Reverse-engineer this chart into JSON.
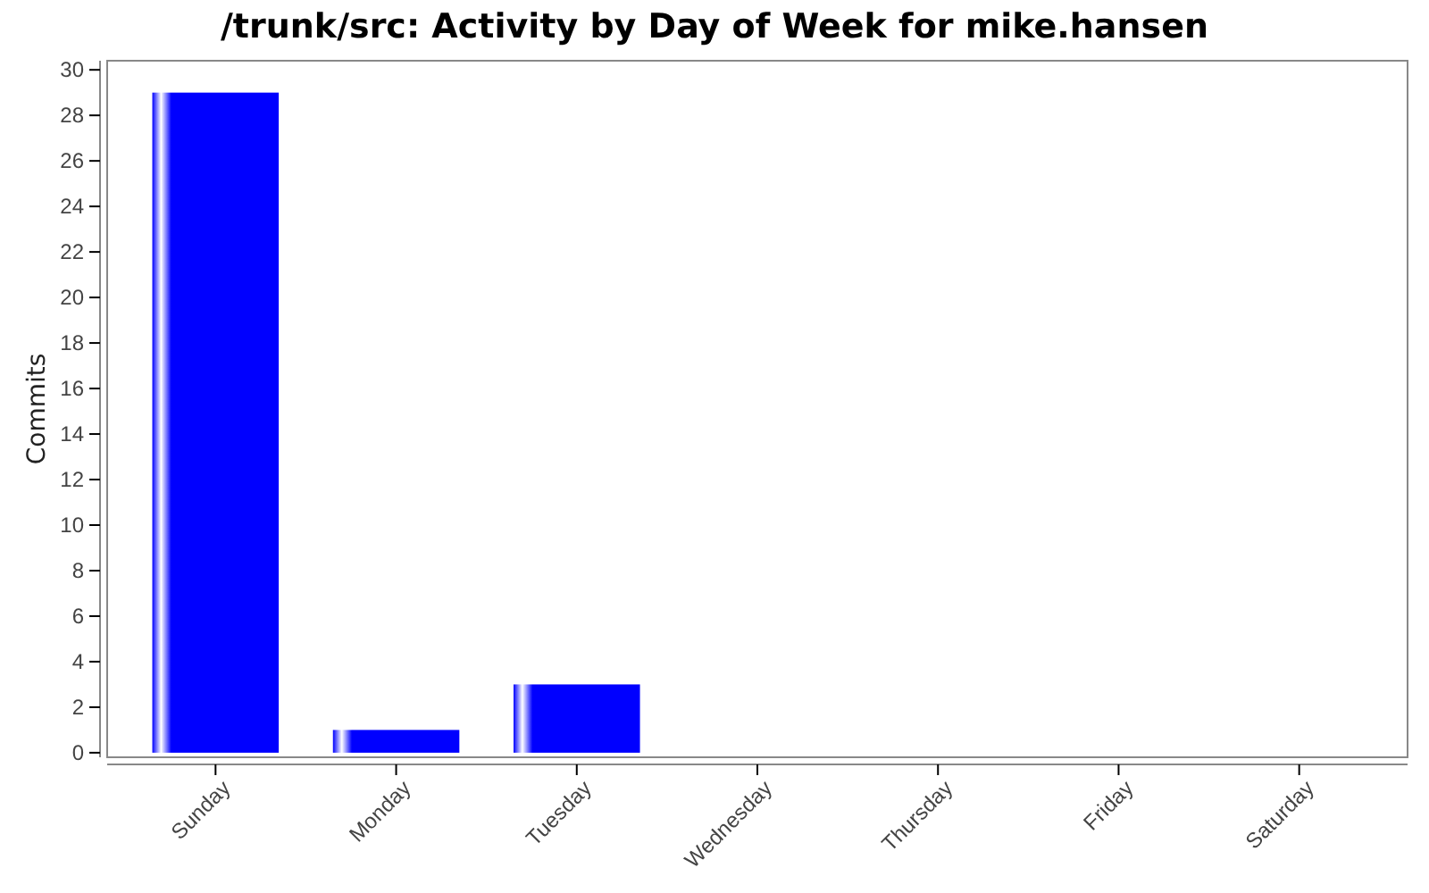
{
  "chart_data": {
    "type": "bar",
    "title": "/trunk/src: Activity by Day of Week for mike.hansen",
    "ylabel": "Commits",
    "categories": [
      "Sunday",
      "Monday",
      "Tuesday",
      "Wednesday",
      "Thursday",
      "Friday",
      "Saturday"
    ],
    "values": [
      29,
      1,
      3,
      0,
      0,
      0,
      0
    ],
    "color": "#0000ff",
    "ylim": [
      -0.2,
      30.4
    ],
    "yticks": [
      0,
      2,
      4,
      6,
      8,
      10,
      12,
      14,
      16,
      18,
      20,
      22,
      24,
      26,
      28,
      30
    ],
    "grid": false
  }
}
